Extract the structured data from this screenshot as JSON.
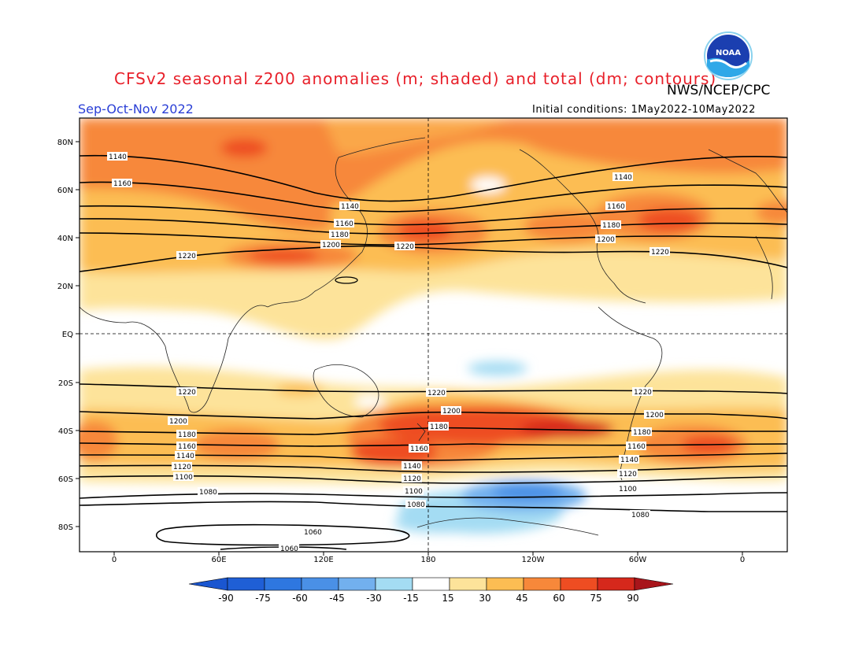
{
  "header": {
    "title": "CFSv2 seasonal z200 anomalies (m; shaded) and total (dm; contours)",
    "agency": "NWS/NCEP/CPC",
    "season": "Sep-Oct-Nov 2022",
    "initial_conditions": "Initial conditions: 1May2022-10May2022",
    "logo_icon": "noaa-logo-icon",
    "logo_text": "NOAA"
  },
  "map": {
    "lat_labels": [
      "80N",
      "60N",
      "40N",
      "20N",
      "EQ",
      "20S",
      "40S",
      "60S",
      "80S"
    ],
    "lon_labels": [
      "0",
      "60E",
      "120E",
      "180",
      "120W",
      "60W",
      "0"
    ],
    "contour_labels": [
      "1140",
      "1160",
      "1180",
      "1200",
      "1220",
      "1100",
      "1120",
      "1080",
      "1060"
    ]
  },
  "colorbar": {
    "labels": [
      "-90",
      "-75",
      "-60",
      "-45",
      "-30",
      "-15",
      "15",
      "30",
      "45",
      "60",
      "75",
      "90"
    ],
    "colors": [
      "#1f5fd6",
      "#2e77e0",
      "#4a90e6",
      "#72b0ee",
      "#a4dcf3",
      "#ffffff",
      "#fde39a",
      "#fcbd53",
      "#f7883a",
      "#ee4d22",
      "#d6281c"
    ],
    "under_color": "#1a56d0",
    "over_color": "#a8151b"
  }
}
